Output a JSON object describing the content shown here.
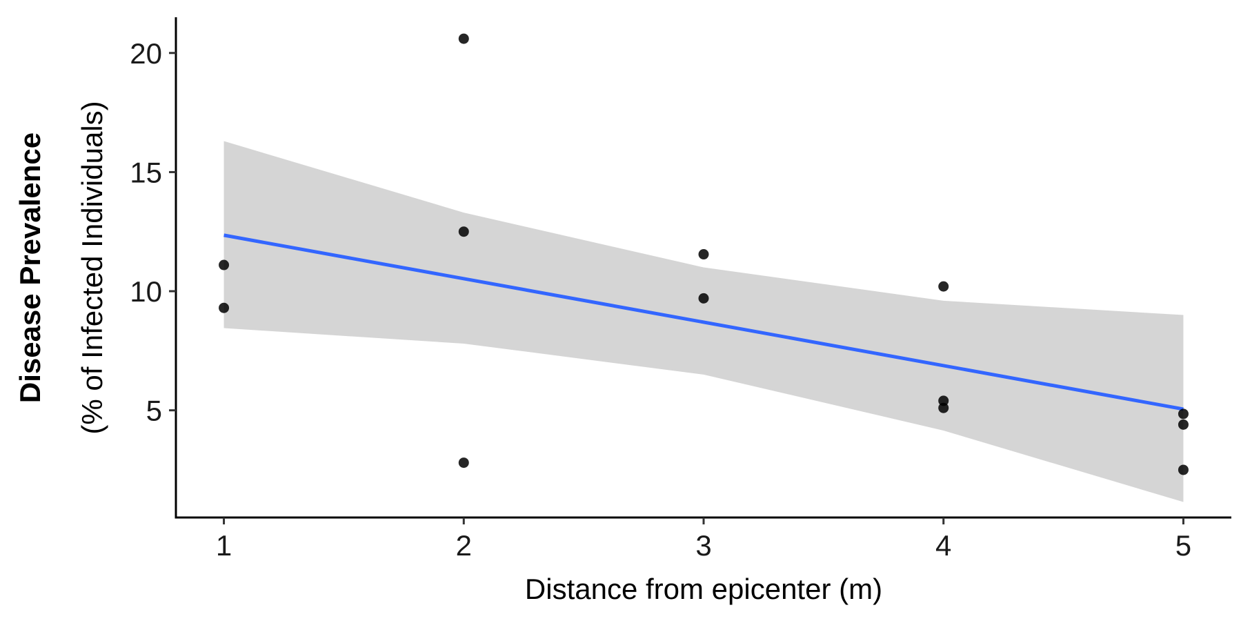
{
  "chart_data": {
    "type": "scatter",
    "xlabel": "Distance from epicenter (m)",
    "ylabel": "Disease Prevalence",
    "ylabel_sub": "(% of Infected Individuals)",
    "xlim": [
      0.8,
      5.2
    ],
    "ylim": [
      0.5,
      21.5
    ],
    "x_ticks": [
      1,
      2,
      3,
      4,
      5
    ],
    "y_ticks": [
      5,
      10,
      15,
      20
    ],
    "grid": false,
    "legend": "none",
    "points": [
      {
        "x": 1,
        "y": 11.1
      },
      {
        "x": 1,
        "y": 9.3
      },
      {
        "x": 2,
        "y": 20.6
      },
      {
        "x": 2,
        "y": 12.5
      },
      {
        "x": 2,
        "y": 2.8
      },
      {
        "x": 3,
        "y": 11.55
      },
      {
        "x": 3,
        "y": 9.7
      },
      {
        "x": 4,
        "y": 10.2
      },
      {
        "x": 4,
        "y": 5.4
      },
      {
        "x": 4,
        "y": 5.1
      },
      {
        "x": 5,
        "y": 4.85
      },
      {
        "x": 5,
        "y": 4.4
      },
      {
        "x": 5,
        "y": 2.5
      }
    ],
    "fit_line": {
      "x": [
        1,
        5
      ],
      "y": [
        12.35,
        5.05
      ]
    },
    "confidence_band": {
      "x": [
        1,
        2,
        3,
        4,
        5
      ],
      "upper": [
        16.3,
        13.3,
        11.0,
        9.6,
        9.0
      ],
      "lower": [
        8.45,
        7.8,
        6.5,
        4.15,
        1.15
      ]
    },
    "colors": {
      "points": "#000000",
      "fit_line": "#3366FF",
      "band": "#D3D3D3",
      "axis": "#000000"
    }
  }
}
